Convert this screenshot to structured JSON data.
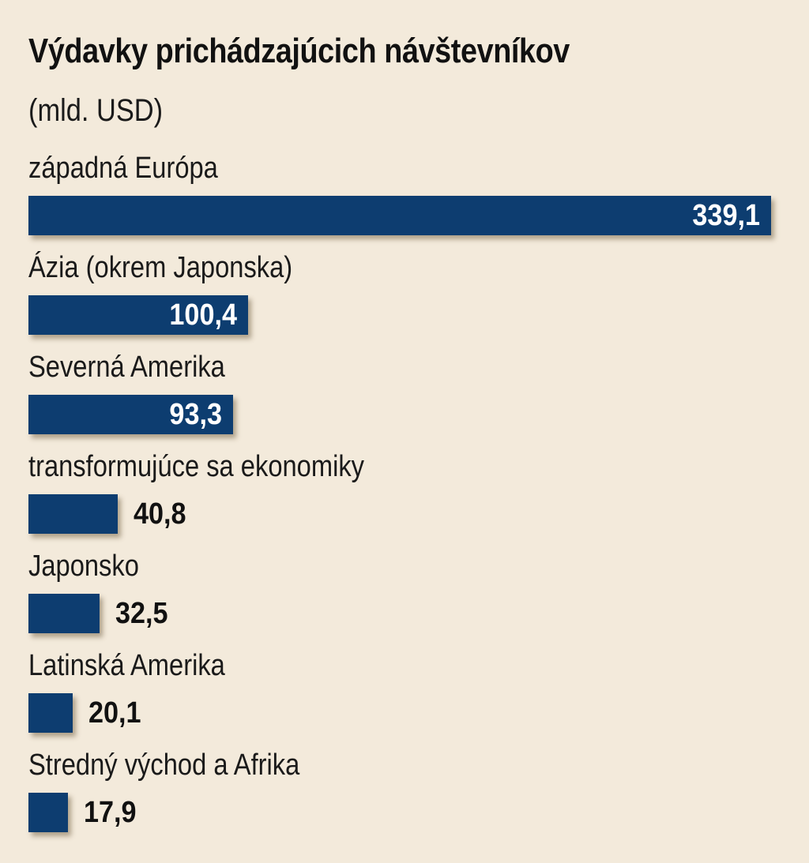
{
  "chart_data": {
    "type": "bar",
    "orientation": "horizontal",
    "title": "Výdavky prichádzajúcich návštevníkov",
    "subtitle": "(mld. USD)",
    "categories": [
      "západná Európa",
      "Ázia (okrem Japonska)",
      "Severná Amerika",
      "transformujúce sa ekonomiky",
      "Japonsko",
      "Latinská Amerika",
      "Stredný východ a Afrika"
    ],
    "values": [
      339.1,
      100.4,
      93.3,
      40.8,
      32.5,
      20.1,
      17.9
    ],
    "value_labels": [
      "339,1",
      "100,4",
      "93,3",
      "40,8",
      "32,5",
      "20,1",
      "17,9"
    ],
    "xlim": [
      0,
      339.1
    ],
    "grid": false,
    "legend": "none",
    "bar_color": "#0d3d70",
    "background_color": "#f3eadb"
  }
}
